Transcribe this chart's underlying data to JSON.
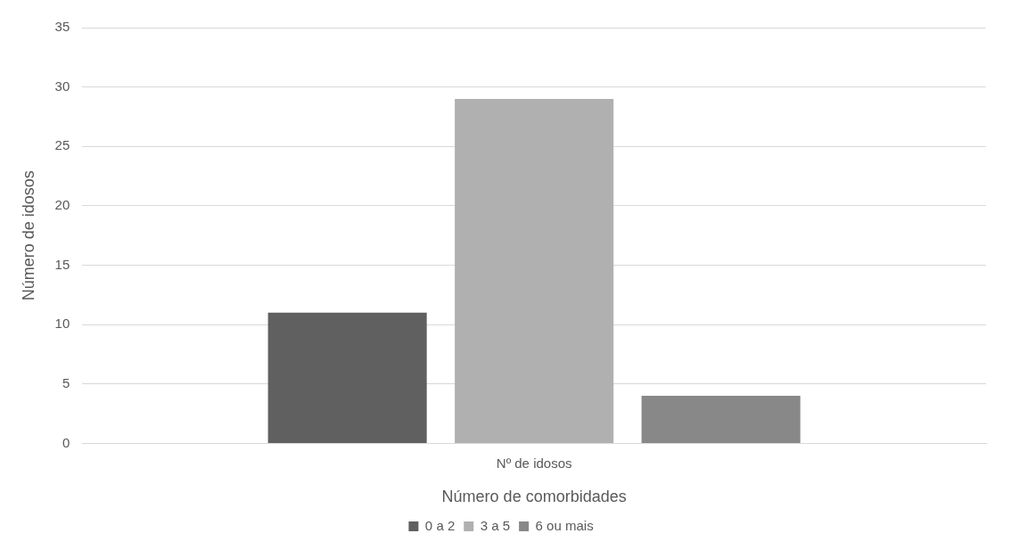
{
  "chart_data": {
    "type": "bar",
    "xlabel": "Número de comorbidades",
    "ylabel": "Número de idosos",
    "categories": [
      "Nº de idosos"
    ],
    "series": [
      {
        "name": "0 a 2",
        "color": "#606060",
        "values": [
          11
        ]
      },
      {
        "name": "3 a 5",
        "color": "#b0b0b0",
        "values": [
          29
        ]
      },
      {
        "name": "6 ou mais",
        "color": "#888888",
        "values": [
          4
        ]
      }
    ],
    "ylim": [
      0,
      35
    ],
    "yticks": [
      0,
      5,
      10,
      15,
      20,
      25,
      30,
      35
    ],
    "grid": "y",
    "legend": "bottom"
  }
}
